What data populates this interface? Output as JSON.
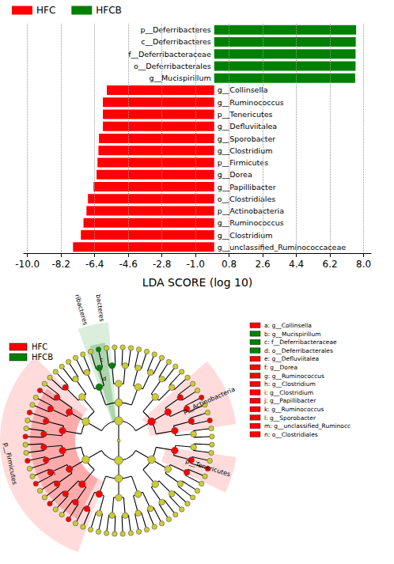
{
  "chart_data": {
    "type": "bar",
    "orientation": "horizontal",
    "x_label": "LDA SCORE (log 10)",
    "categories": [
      "p__Deferribacteres",
      "c__Deferribacteres",
      "f__Deferribacteraceae",
      "o__Deferribacterales",
      "g__Mucispirillum",
      "g__Collinsella",
      "g__Ruminococcus",
      "p__Tenericutes",
      "g__Defluviitalea",
      "g__Sporobacter",
      "g__Clostridium",
      "p__Firmicutes",
      "g__Dorea",
      "g__Papillibacter",
      "o__Clostridiales",
      "p__Actinobacteria",
      "g__Ruminococcus",
      "g__Clostridium",
      "g__unclassified_Ruminococcaceae"
    ],
    "series": [
      {
        "name": "HFC",
        "color": "#ff0000",
        "values": [
          null,
          null,
          null,
          null,
          null,
          -5.75,
          -5.96,
          -5.96,
          -5.96,
          -6.17,
          -6.2,
          -6.25,
          -6.3,
          -6.46,
          -6.76,
          -6.84,
          -7.0,
          -7.14,
          -7.56
        ]
      },
      {
        "name": "HFCB",
        "color": "#008000",
        "values": [
          7.6,
          7.58,
          7.57,
          7.57,
          7.55,
          null,
          null,
          null,
          null,
          null,
          null,
          null,
          null,
          null,
          null,
          null,
          null,
          null,
          null
        ]
      }
    ],
    "xlim": [
      -10.2,
      8.4
    ],
    "xticks": [
      {
        "value": -10,
        "label": "-10.0"
      },
      -8.2,
      -6.4,
      -4.6,
      -2.8,
      {
        "value": -1,
        "label": "-1.0"
      },
      0.8,
      2.6,
      4.4,
      6.2,
      {
        "value": 8,
        "label": "8.0"
      }
    ],
    "grid": true,
    "legend": "top-left"
  },
  "cladogram": {
    "legend": [
      {
        "name": "HFC",
        "color": "#ff0000"
      },
      {
        "name": "HFCB",
        "color": "#008000"
      }
    ],
    "clades": [
      {
        "labels": [
          "p__Firmicutes"
        ],
        "class": "HFC",
        "letters": [
          "n"
        ]
      },
      {
        "labels": [
          "p__Deferribacteres",
          "c__Deferribacteres"
        ],
        "class": "HFCB",
        "letters": [
          "d",
          "c"
        ]
      },
      {
        "labels": [
          "p__Actinobacteria"
        ],
        "class": "HFC",
        "letters": []
      },
      {
        "labels": [
          "p__Tenericutes"
        ],
        "class": "HFC",
        "letters": []
      }
    ],
    "key": [
      {
        "text": "a: g__Collinsella",
        "class": "HFC"
      },
      {
        "text": "b: g__Mucispirillum",
        "class": "HFCB"
      },
      {
        "text": "c: f__Deferribacteraceae",
        "class": "HFCB"
      },
      {
        "text": "d: o__Deferribacterales",
        "class": "HFCB"
      },
      {
        "text": "e: g__Defluviitalea",
        "class": "HFC"
      },
      {
        "text": "f: g__Dorea",
        "class": "HFC"
      },
      {
        "text": "g: g__Ruminococcus",
        "class": "HFC"
      },
      {
        "text": "h: g__Clostridium",
        "class": "HFC"
      },
      {
        "text": "i: g__Clostridium",
        "class": "HFC"
      },
      {
        "text": "j: g__Papillibacter",
        "class": "HFC"
      },
      {
        "text": "k: g__Ruminococcus",
        "class": "HFC"
      },
      {
        "text": "l: g__Sporobacter",
        "class": "HFC"
      },
      {
        "text": "m: g__unclassified_Ruminocc",
        "class": "HFC"
      },
      {
        "text": "n: o__Clostridiales",
        "class": "HFC"
      }
    ]
  }
}
